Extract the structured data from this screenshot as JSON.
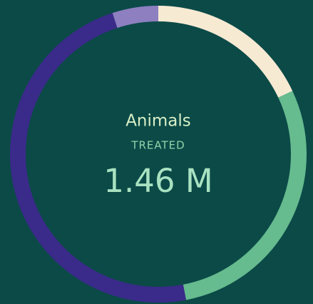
{
  "chart_data": {
    "type": "donut",
    "title": "Animals",
    "subtitle": "TREATED",
    "center_label": "1.46 M",
    "categories": [
      null,
      null,
      null,
      null
    ],
    "values": [
      18,
      29,
      48,
      5
    ],
    "colors": [
      "#f7ead3",
      "#66bb8f",
      "#3a2a8a",
      "#8d7fc0"
    ]
  }
}
